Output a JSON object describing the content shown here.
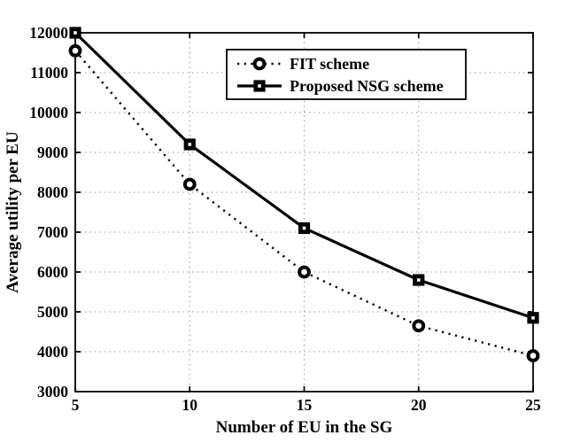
{
  "chart_data": {
    "type": "line",
    "title": "",
    "xlabel": "Number of EU in the SG",
    "ylabel": "Average utility per EU",
    "x": [
      5,
      10,
      15,
      20,
      25
    ],
    "xlim": [
      5,
      25
    ],
    "ylim": [
      3000,
      12000
    ],
    "xticks": [
      5,
      10,
      15,
      20,
      25
    ],
    "yticks": [
      3000,
      4000,
      5000,
      6000,
      7000,
      8000,
      9000,
      10000,
      11000,
      12000
    ],
    "grid": "dotted",
    "legend_position": "inside-upper-center",
    "axis_color": "#000000",
    "grid_color": "#8f8f8f",
    "background_color": "#ffffff",
    "series": [
      {
        "name": "FIT scheme",
        "values": [
          11550,
          8200,
          6000,
          4650,
          3900
        ],
        "line": "dotted",
        "marker": "circle",
        "color": "#000000"
      },
      {
        "name": "Proposed NSG scheme",
        "values": [
          12000,
          9200,
          7100,
          5800,
          4850
        ],
        "line": "solid",
        "marker": "square",
        "color": "#000000"
      }
    ]
  }
}
